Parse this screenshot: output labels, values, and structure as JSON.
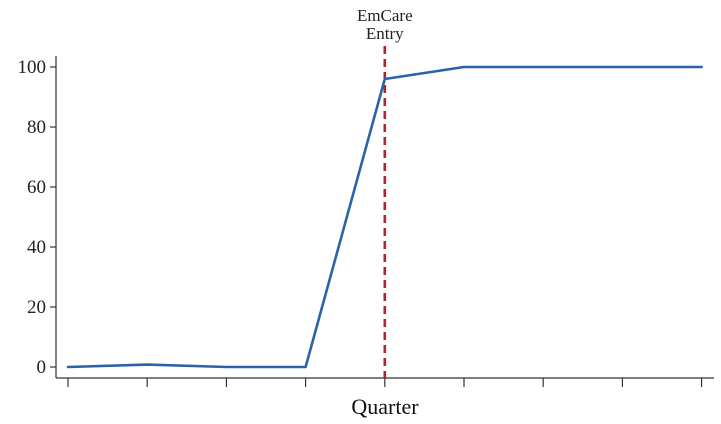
{
  "chart_data": {
    "type": "line",
    "title": "",
    "xlabel": "Quarter",
    "ylabel": "",
    "x": [
      0,
      1,
      2,
      3,
      4,
      5,
      6,
      7,
      8
    ],
    "x_tick_labels": [],
    "ylim": [
      0,
      100
    ],
    "yticks": [
      0,
      20,
      40,
      60,
      80,
      100
    ],
    "grid": false,
    "legend": "none",
    "series": [
      {
        "values": [
          0,
          0.8,
          0,
          0,
          96,
          100,
          100,
          100,
          100
        ],
        "color": "#2b63a8"
      }
    ],
    "annotations": [
      {
        "text_lines": [
          "EmCare",
          "Entry"
        ],
        "x": 4,
        "line_color": "#b5232b",
        "line_style": "dashed"
      }
    ]
  }
}
